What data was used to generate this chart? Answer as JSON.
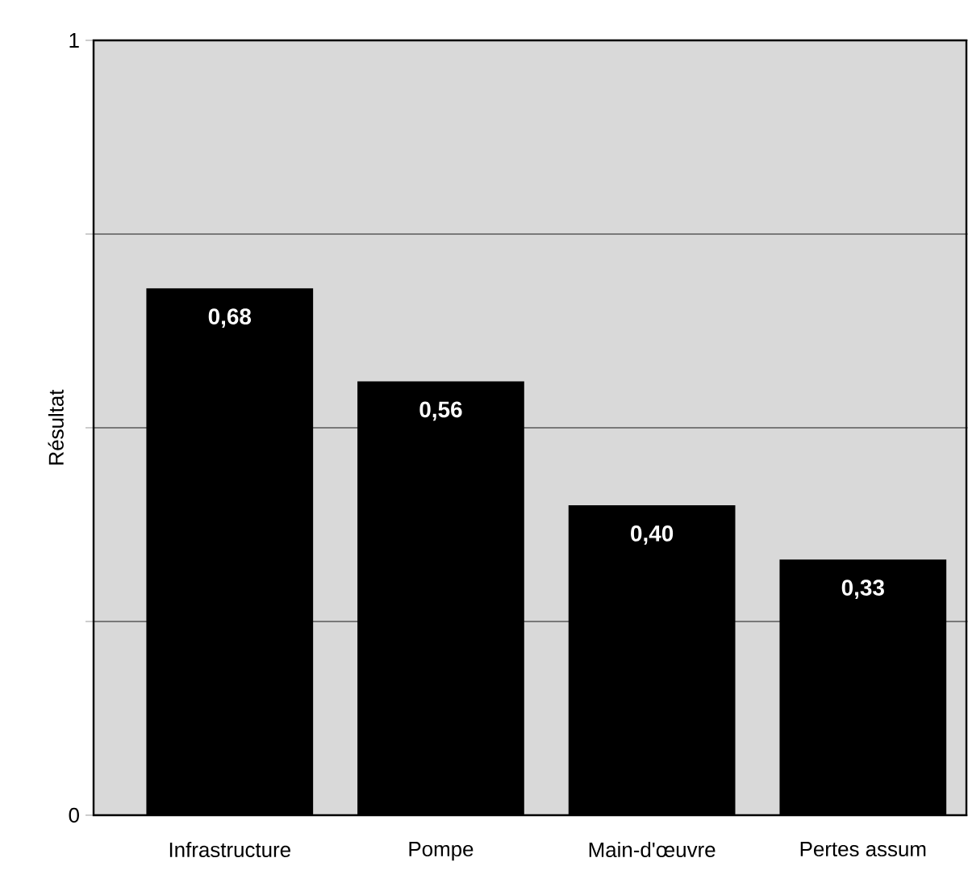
{
  "chart_data": {
    "type": "bar",
    "ylabel": "Résultat",
    "categories": [
      "Infrastructure",
      "Pompe",
      "Main-d'œuvre",
      "Pertes assum"
    ],
    "values": [
      0.68,
      0.56,
      0.4,
      0.33
    ],
    "color": "#000000",
    "value_labels": [
      "0,68",
      "0,56",
      "0,40",
      "0,33"
    ],
    "ylim": [
      0,
      1
    ],
    "yticks": [
      0,
      {
        "value": 0.25,
        "label": null
      },
      {
        "value": 0.5,
        "label": null
      },
      {
        "value": 0.75,
        "label": null
      },
      1
    ],
    "grid": "y"
  }
}
